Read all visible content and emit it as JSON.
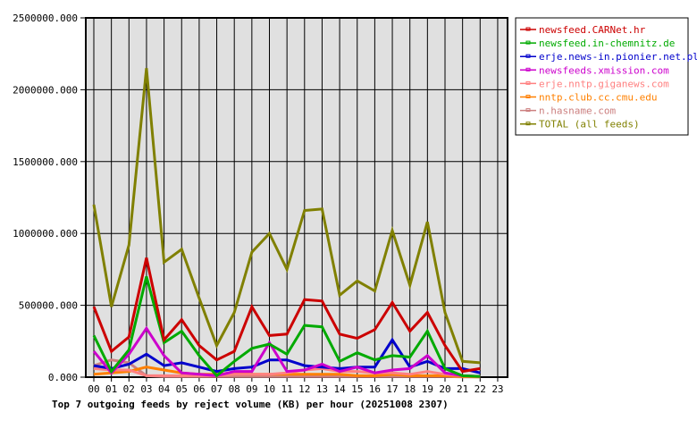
{
  "chart_data": {
    "type": "line",
    "title": "Top 7 outgoing feeds by reject volume (KB) per hour (20251008 2307)",
    "xlabel": "",
    "ylabel": "",
    "ylim": [
      0,
      2500000
    ],
    "yticks": [
      "0.000",
      "500000.000",
      "1000000.000",
      "1500000.000",
      "2000000.000",
      "2500000.000"
    ],
    "ytick_values": [
      0,
      500000,
      1000000,
      1500000,
      2000000,
      2500000
    ],
    "categories": [
      "00",
      "01",
      "02",
      "03",
      "04",
      "05",
      "06",
      "07",
      "08",
      "09",
      "10",
      "11",
      "12",
      "13",
      "14",
      "15",
      "16",
      "17",
      "18",
      "19",
      "20",
      "21",
      "22",
      "23"
    ],
    "grid": true,
    "legend_position": "right",
    "series": [
      {
        "name": "newsfeed.CARNet.hr",
        "color": "#cc0000",
        "values": [
          490000,
          180000,
          280000,
          830000,
          260000,
          400000,
          220000,
          120000,
          180000,
          490000,
          290000,
          300000,
          540000,
          530000,
          300000,
          270000,
          330000,
          520000,
          320000,
          450000,
          220000,
          40000,
          60000
        ]
      },
      {
        "name": "newsfeed.in-chemnitz.de",
        "color": "#00aa00",
        "values": [
          290000,
          40000,
          190000,
          700000,
          240000,
          320000,
          150000,
          10000,
          110000,
          200000,
          230000,
          160000,
          360000,
          350000,
          110000,
          170000,
          120000,
          150000,
          140000,
          320000,
          60000,
          10000,
          5000
        ]
      },
      {
        "name": "erje.news-in.pionier.net.pl",
        "color": "#0000cc",
        "values": [
          80000,
          60000,
          90000,
          160000,
          80000,
          100000,
          70000,
          40000,
          60000,
          70000,
          120000,
          120000,
          80000,
          70000,
          60000,
          70000,
          70000,
          260000,
          70000,
          110000,
          60000,
          60000,
          30000
        ]
      },
      {
        "name": "newsfeeds.xmission.com",
        "color": "#cc00cc",
        "values": [
          180000,
          30000,
          160000,
          340000,
          150000,
          30000,
          20000,
          10000,
          40000,
          40000,
          240000,
          40000,
          50000,
          90000,
          40000,
          70000,
          30000,
          50000,
          60000,
          150000,
          30000,
          10000,
          5000
        ]
      },
      {
        "name": "erje.nntp.giganews.com",
        "color": "#ff8080",
        "values": [
          60000,
          50000,
          50000,
          10000,
          10000,
          10000,
          10000,
          10000,
          20000,
          20000,
          20000,
          30000,
          50000,
          60000,
          40000,
          40000,
          30000,
          30000,
          20000,
          40000,
          20000,
          10000,
          5000
        ]
      },
      {
        "name": "nntp.club.cc.cmu.edu",
        "color": "#ff8000",
        "values": [
          20000,
          30000,
          40000,
          70000,
          50000,
          30000,
          20000,
          20000,
          30000,
          20000,
          20000,
          20000,
          20000,
          20000,
          20000,
          10000,
          10000,
          20000,
          10000,
          10000,
          10000,
          5000,
          2000
        ]
      },
      {
        "name": "n.hasname.com",
        "color": "#cc8080",
        "values": [
          80000,
          120000,
          100000,
          10000,
          5000,
          5000,
          5000,
          5000,
          5000,
          5000,
          5000,
          5000,
          5000,
          5000,
          5000,
          5000,
          5000,
          5000,
          5000,
          5000,
          5000,
          2000,
          2000
        ]
      },
      {
        "name": "TOTAL (all feeds)",
        "color": "#808000",
        "values": [
          1200000,
          490000,
          920000,
          2150000,
          800000,
          890000,
          550000,
          220000,
          450000,
          870000,
          1000000,
          750000,
          1160000,
          1170000,
          570000,
          670000,
          600000,
          1020000,
          640000,
          1080000,
          450000,
          110000,
          100000
        ]
      }
    ]
  },
  "colors": {
    "plot_background": "#e0e0e0",
    "grid": "#000000",
    "axis": "#000000"
  }
}
